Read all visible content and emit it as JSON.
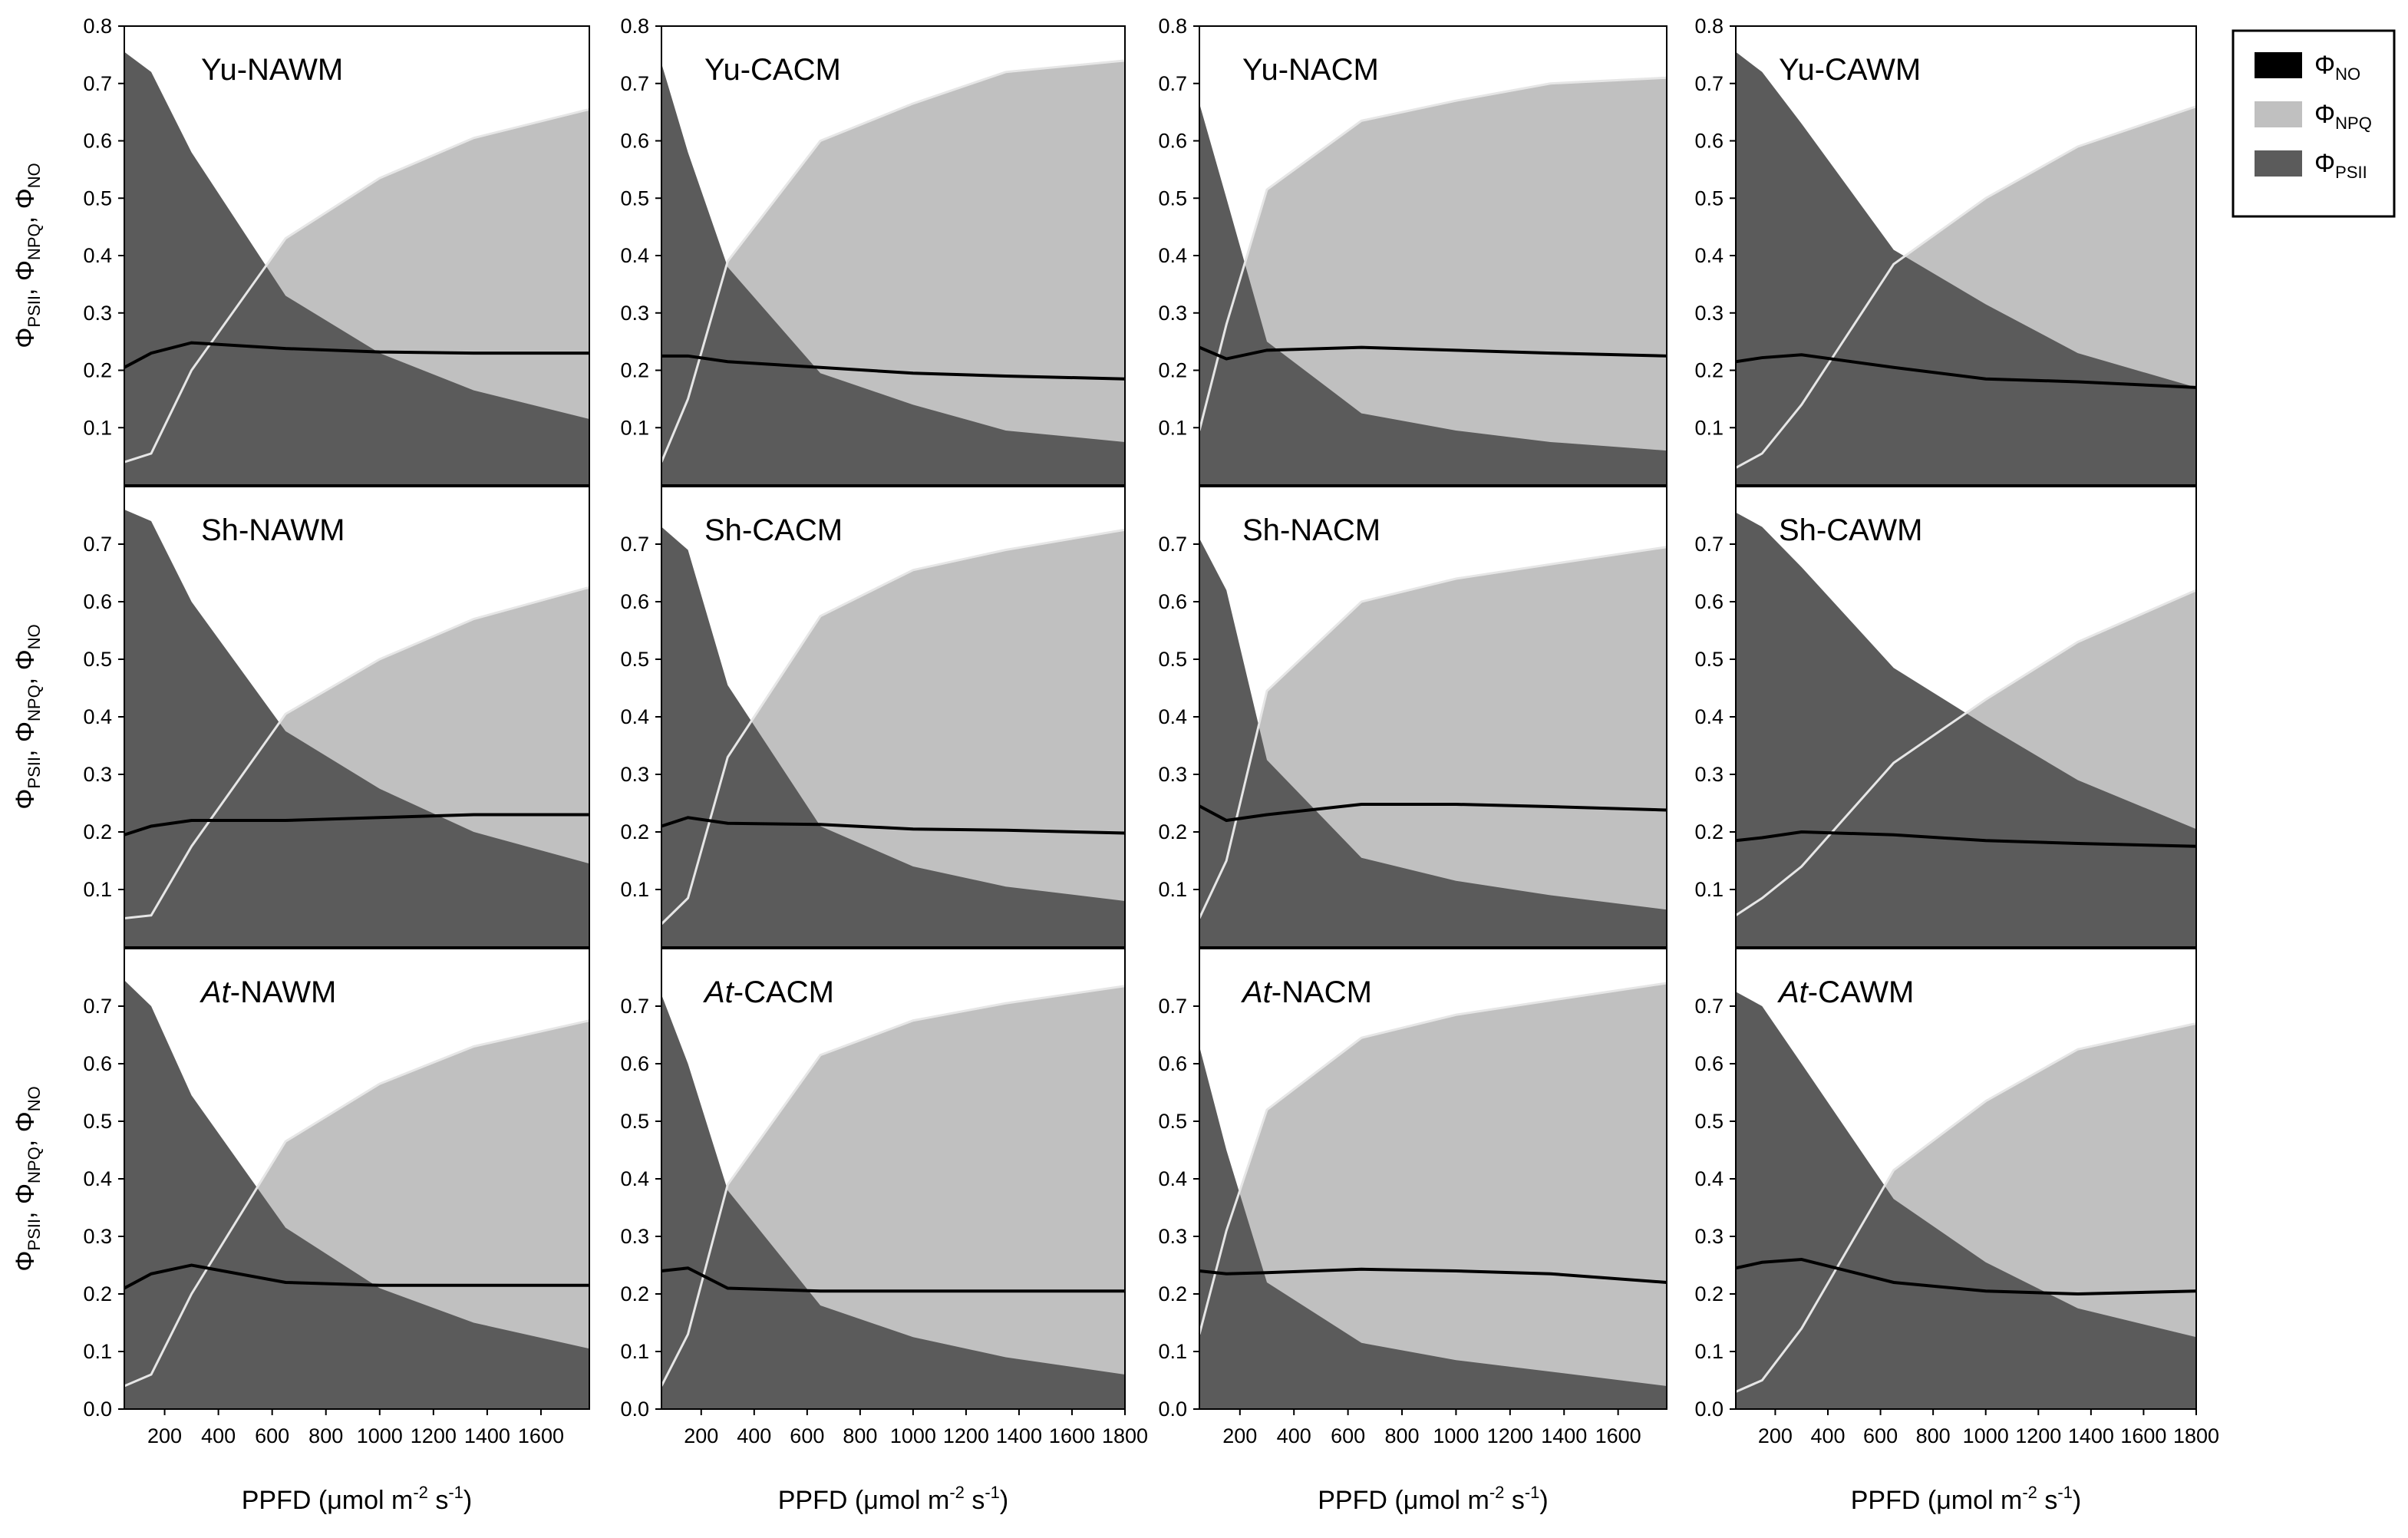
{
  "colors": {
    "psii": "#5b5b5b",
    "npq": "#c0c0c0",
    "no_line": "#000000",
    "npq_edge": "#e6e6e6",
    "axis": "#000000"
  },
  "legend": {
    "entries": [
      {
        "key": "no",
        "symbol": "Φ",
        "sub": "NO"
      },
      {
        "key": "npq",
        "symbol": "Φ",
        "sub": "NPQ"
      },
      {
        "key": "psii",
        "symbol": "Φ",
        "sub": "PSII"
      }
    ]
  },
  "y_axis_label": {
    "symbol": "Φ",
    "parts": [
      [
        "PSII",
        ", "
      ],
      [
        "NPQ",
        ", "
      ],
      [
        "NO",
        ""
      ]
    ]
  },
  "x_axis_label": {
    "prefix": "PPFD (",
    "mu": "μ",
    "mid": "mol m",
    "sup1": "-2",
    "mid2": " s",
    "sup2": "-1",
    "suffix": ")"
  },
  "y_ticks": [
    "0.0",
    "0.1",
    "0.2",
    "0.3",
    "0.4",
    "0.5",
    "0.6",
    "0.7",
    "0.8"
  ],
  "x_ticks": [
    "200",
    "400",
    "600",
    "800",
    "1000",
    "1200",
    "1400",
    "1600",
    "1800"
  ],
  "chart_data": [
    {
      "type": "area",
      "title_prefix": "Yu",
      "title_italic": false,
      "title_suffix": "-NAWM",
      "xlim": [
        50,
        1780
      ],
      "ylim": [
        0,
        0.8
      ],
      "x": [
        50,
        150,
        300,
        650,
        1000,
        1350,
        1780
      ],
      "series": [
        {
          "name": "ΦPSII",
          "values": [
            0.755,
            0.72,
            0.58,
            0.33,
            0.23,
            0.165,
            0.115
          ]
        },
        {
          "name": "ΦPSII+ΦNPQ",
          "values": [
            0.04,
            0.055,
            0.2,
            0.43,
            0.535,
            0.605,
            0.655
          ]
        },
        {
          "name": "ΦNO",
          "values": [
            0.205,
            0.23,
            0.248,
            0.238,
            0.232,
            0.23,
            0.23
          ]
        }
      ]
    },
    {
      "type": "area",
      "title_prefix": "Yu",
      "title_italic": false,
      "title_suffix": "-CACM",
      "xlim": [
        50,
        1800
      ],
      "ylim": [
        0,
        0.8
      ],
      "x": [
        50,
        150,
        300,
        650,
        1000,
        1350,
        1800
      ],
      "series": [
        {
          "name": "ΦPSII",
          "values": [
            0.735,
            0.58,
            0.38,
            0.195,
            0.14,
            0.095,
            0.075
          ]
        },
        {
          "name": "ΦPSII+ΦNPQ",
          "values": [
            0.04,
            0.15,
            0.39,
            0.6,
            0.665,
            0.72,
            0.74
          ]
        },
        {
          "name": "ΦNO",
          "values": [
            0.225,
            0.225,
            0.215,
            0.205,
            0.195,
            0.19,
            0.185
          ]
        }
      ]
    },
    {
      "type": "area",
      "title_prefix": "Yu",
      "title_italic": false,
      "title_suffix": "-NACM",
      "xlim": [
        50,
        1780
      ],
      "ylim": [
        0,
        0.8
      ],
      "x": [
        50,
        150,
        300,
        650,
        1000,
        1350,
        1780
      ],
      "series": [
        {
          "name": "ΦPSII",
          "values": [
            0.665,
            0.5,
            0.25,
            0.125,
            0.095,
            0.075,
            0.06
          ]
        },
        {
          "name": "ΦPSII+ΦNPQ",
          "values": [
            0.095,
            0.28,
            0.515,
            0.635,
            0.67,
            0.7,
            0.71
          ]
        },
        {
          "name": "ΦNO",
          "values": [
            0.24,
            0.22,
            0.235,
            0.24,
            0.235,
            0.23,
            0.225
          ]
        }
      ]
    },
    {
      "type": "area",
      "title_prefix": "Yu",
      "title_italic": false,
      "title_suffix": "-CAWM",
      "xlim": [
        50,
        1800
      ],
      "ylim": [
        0,
        0.8
      ],
      "x": [
        50,
        150,
        300,
        650,
        1000,
        1350,
        1800
      ],
      "series": [
        {
          "name": "ΦPSII",
          "values": [
            0.755,
            0.72,
            0.63,
            0.41,
            0.315,
            0.23,
            0.17
          ]
        },
        {
          "name": "ΦPSII+ΦNPQ",
          "values": [
            0.03,
            0.055,
            0.14,
            0.385,
            0.5,
            0.59,
            0.66
          ]
        },
        {
          "name": "ΦNO",
          "values": [
            0.215,
            0.222,
            0.227,
            0.205,
            0.185,
            0.18,
            0.17
          ]
        }
      ]
    },
    {
      "type": "area",
      "title_prefix": "Sh",
      "title_italic": false,
      "title_suffix": "-NAWM",
      "xlim": [
        50,
        1780
      ],
      "ylim": [
        0,
        0.8
      ],
      "x": [
        50,
        150,
        300,
        650,
        1000,
        1350,
        1780
      ],
      "series": [
        {
          "name": "ΦPSII",
          "values": [
            0.76,
            0.74,
            0.6,
            0.375,
            0.275,
            0.2,
            0.145
          ]
        },
        {
          "name": "ΦPSII+ΦNPQ",
          "values": [
            0.05,
            0.055,
            0.175,
            0.405,
            0.5,
            0.57,
            0.625
          ]
        },
        {
          "name": "ΦNO",
          "values": [
            0.195,
            0.21,
            0.22,
            0.22,
            0.225,
            0.23,
            0.23
          ]
        }
      ]
    },
    {
      "type": "area",
      "title_prefix": "Sh",
      "title_italic": false,
      "title_suffix": "-CACM",
      "xlim": [
        50,
        1800
      ],
      "ylim": [
        0,
        0.8
      ],
      "x": [
        50,
        150,
        300,
        650,
        1000,
        1350,
        1800
      ],
      "series": [
        {
          "name": "ΦPSII",
          "values": [
            0.73,
            0.69,
            0.455,
            0.21,
            0.14,
            0.105,
            0.08
          ]
        },
        {
          "name": "ΦPSII+ΦNPQ",
          "values": [
            0.04,
            0.085,
            0.33,
            0.575,
            0.655,
            0.69,
            0.725
          ]
        },
        {
          "name": "ΦNO",
          "values": [
            0.21,
            0.225,
            0.215,
            0.213,
            0.205,
            0.203,
            0.198
          ]
        }
      ]
    },
    {
      "type": "area",
      "title_prefix": "Sh",
      "title_italic": false,
      "title_suffix": "-NACM",
      "xlim": [
        50,
        1780
      ],
      "ylim": [
        0,
        0.8
      ],
      "x": [
        50,
        150,
        300,
        650,
        1000,
        1350,
        1780
      ],
      "series": [
        {
          "name": "ΦPSII",
          "values": [
            0.71,
            0.62,
            0.325,
            0.155,
            0.115,
            0.09,
            0.065
          ]
        },
        {
          "name": "ΦPSII+ΦNPQ",
          "values": [
            0.05,
            0.15,
            0.445,
            0.6,
            0.64,
            0.665,
            0.695
          ]
        },
        {
          "name": "ΦNO",
          "values": [
            0.245,
            0.22,
            0.23,
            0.248,
            0.248,
            0.244,
            0.238
          ]
        }
      ]
    },
    {
      "type": "area",
      "title_prefix": "Sh",
      "title_italic": false,
      "title_suffix": "-CAWM",
      "xlim": [
        50,
        1800
      ],
      "ylim": [
        0,
        0.8
      ],
      "x": [
        50,
        150,
        300,
        650,
        1000,
        1350,
        1800
      ],
      "series": [
        {
          "name": "ΦPSII",
          "values": [
            0.755,
            0.73,
            0.66,
            0.485,
            0.385,
            0.29,
            0.205
          ]
        },
        {
          "name": "ΦPSII+ΦNPQ",
          "values": [
            0.055,
            0.085,
            0.14,
            0.32,
            0.43,
            0.53,
            0.62
          ]
        },
        {
          "name": "ΦNO",
          "values": [
            0.185,
            0.19,
            0.2,
            0.195,
            0.185,
            0.18,
            0.175
          ]
        }
      ]
    },
    {
      "type": "area",
      "title_prefix": "At",
      "title_italic": true,
      "title_suffix": "-NAWM",
      "xlim": [
        50,
        1780
      ],
      "ylim": [
        0,
        0.8
      ],
      "x": [
        50,
        150,
        300,
        650,
        1000,
        1350,
        1780
      ],
      "series": [
        {
          "name": "ΦPSII",
          "values": [
            0.745,
            0.7,
            0.545,
            0.315,
            0.21,
            0.15,
            0.105
          ]
        },
        {
          "name": "ΦPSII+ΦNPQ",
          "values": [
            0.04,
            0.06,
            0.2,
            0.465,
            0.565,
            0.63,
            0.675
          ]
        },
        {
          "name": "ΦNO",
          "values": [
            0.21,
            0.235,
            0.25,
            0.22,
            0.215,
            0.215,
            0.215
          ]
        }
      ]
    },
    {
      "type": "area",
      "title_prefix": "At",
      "title_italic": true,
      "title_suffix": "-CACM",
      "xlim": [
        50,
        1800
      ],
      "ylim": [
        0,
        0.8
      ],
      "x": [
        50,
        150,
        300,
        650,
        1000,
        1350,
        1800
      ],
      "series": [
        {
          "name": "ΦPSII",
          "values": [
            0.72,
            0.6,
            0.38,
            0.18,
            0.125,
            0.09,
            0.06
          ]
        },
        {
          "name": "ΦPSII+ΦNPQ",
          "values": [
            0.04,
            0.13,
            0.39,
            0.615,
            0.675,
            0.705,
            0.735
          ]
        },
        {
          "name": "ΦNO",
          "values": [
            0.24,
            0.245,
            0.21,
            0.205,
            0.205,
            0.205,
            0.205
          ]
        }
      ]
    },
    {
      "type": "area",
      "title_prefix": "At",
      "title_italic": true,
      "title_suffix": "-NACM",
      "xlim": [
        50,
        1780
      ],
      "ylim": [
        0,
        0.8
      ],
      "x": [
        50,
        150,
        300,
        650,
        1000,
        1350,
        1780
      ],
      "series": [
        {
          "name": "ΦPSII",
          "values": [
            0.63,
            0.45,
            0.22,
            0.115,
            0.085,
            0.065,
            0.04
          ]
        },
        {
          "name": "ΦPSII+ΦNPQ",
          "values": [
            0.13,
            0.31,
            0.52,
            0.645,
            0.685,
            0.71,
            0.74
          ]
        },
        {
          "name": "ΦNO",
          "values": [
            0.24,
            0.235,
            0.237,
            0.243,
            0.24,
            0.235,
            0.22
          ]
        }
      ]
    },
    {
      "type": "area",
      "title_prefix": "At",
      "title_italic": true,
      "title_suffix": "-CAWM",
      "xlim": [
        50,
        1800
      ],
      "ylim": [
        0,
        0.8
      ],
      "x": [
        50,
        150,
        300,
        650,
        1000,
        1350,
        1800
      ],
      "series": [
        {
          "name": "ΦPSII",
          "values": [
            0.725,
            0.7,
            0.6,
            0.365,
            0.255,
            0.175,
            0.125
          ]
        },
        {
          "name": "ΦPSII+ΦNPQ",
          "values": [
            0.03,
            0.05,
            0.14,
            0.415,
            0.535,
            0.625,
            0.67
          ]
        },
        {
          "name": "ΦNO",
          "values": [
            0.245,
            0.255,
            0.26,
            0.22,
            0.205,
            0.2,
            0.205
          ]
        }
      ]
    }
  ]
}
